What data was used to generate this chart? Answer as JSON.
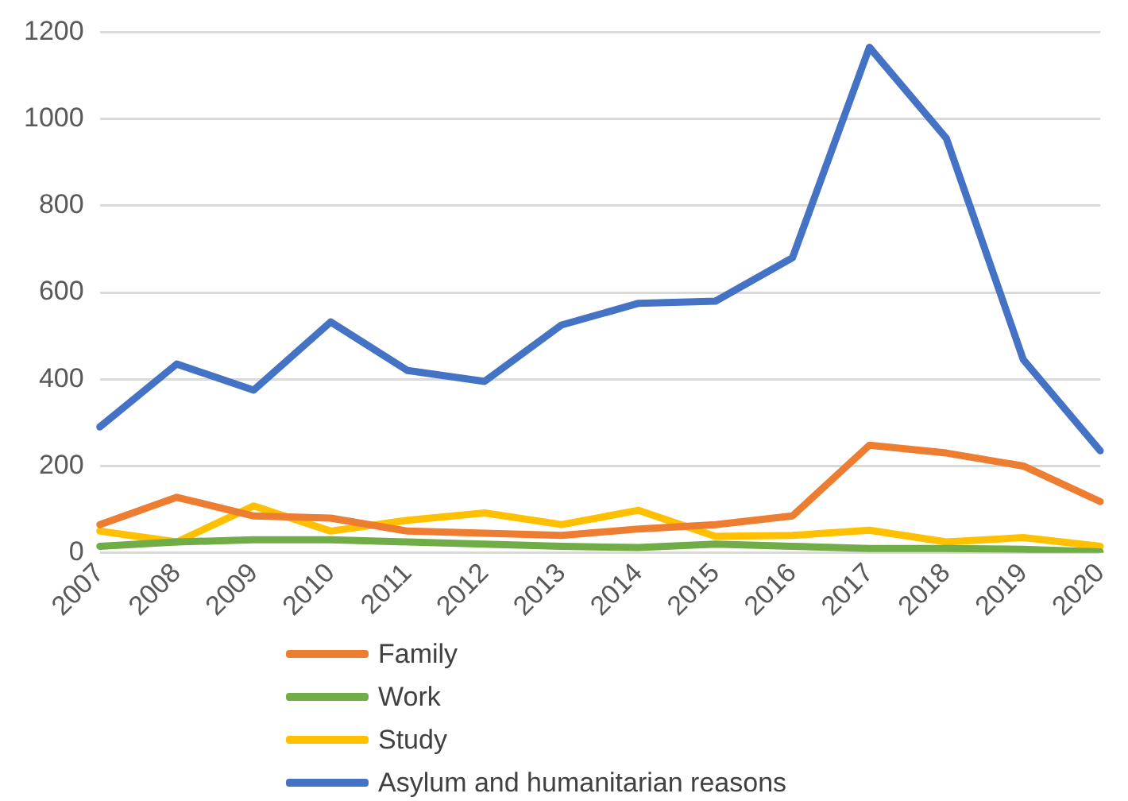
{
  "chart_data": {
    "type": "line",
    "categories": [
      "2007",
      "2008",
      "2009",
      "2010",
      "2011",
      "2012",
      "2013",
      "2014",
      "2015",
      "2016",
      "2017",
      "2018",
      "2019",
      "2020"
    ],
    "series": [
      {
        "name": "Family",
        "color": "#ed7d31",
        "values": [
          65,
          128,
          85,
          80,
          50,
          45,
          40,
          55,
          65,
          85,
          248,
          230,
          200,
          118
        ]
      },
      {
        "name": "Work",
        "color": "#70ad47",
        "values": [
          15,
          25,
          30,
          30,
          25,
          20,
          15,
          12,
          20,
          15,
          10,
          10,
          8,
          2
        ]
      },
      {
        "name": "Study",
        "color": "#ffc000",
        "values": [
          50,
          25,
          108,
          50,
          75,
          92,
          65,
          98,
          38,
          40,
          52,
          25,
          35,
          15
        ]
      },
      {
        "name": "Asylum and humanitarian reasons",
        "color": "#4472c4",
        "values": [
          290,
          435,
          375,
          532,
          420,
          395,
          525,
          575,
          580,
          680,
          1165,
          955,
          445,
          235
        ]
      }
    ],
    "ylim": [
      0,
      1200
    ],
    "yticks": [
      0,
      200,
      400,
      600,
      800,
      1000,
      1200
    ],
    "grid": "y",
    "legend": "bottom",
    "marker": "none",
    "line_style": "solid"
  }
}
